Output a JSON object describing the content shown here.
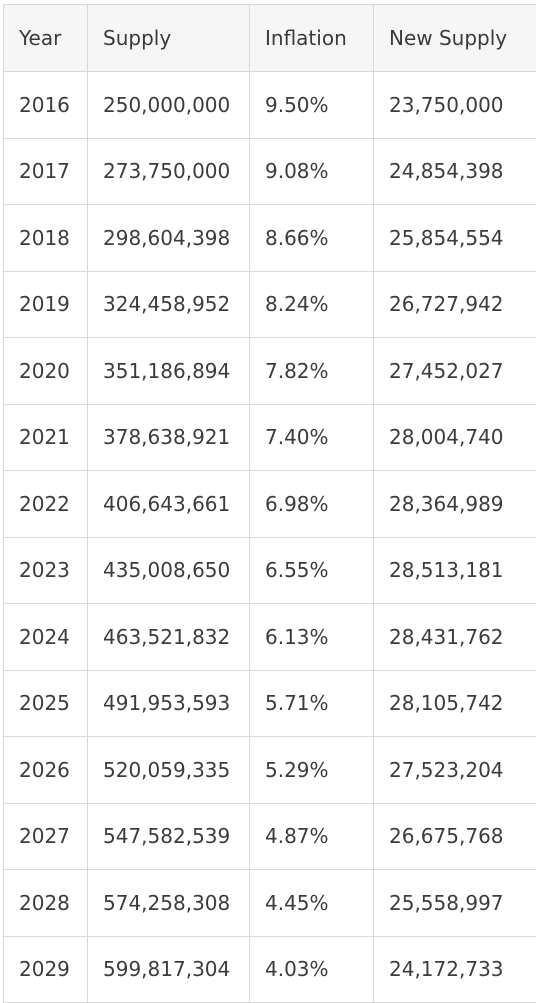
{
  "table": {
    "headers": [
      "Year",
      "Supply",
      "Inflation",
      "New Supply"
    ],
    "rows": [
      [
        "2016",
        "250,000,000",
        "9.50%",
        "23,750,000"
      ],
      [
        "2017",
        "273,750,000",
        "9.08%",
        "24,854,398"
      ],
      [
        "2018",
        "298,604,398",
        "8.66%",
        "25,854,554"
      ],
      [
        "2019",
        "324,458,952",
        "8.24%",
        "26,727,942"
      ],
      [
        "2020",
        "351,186,894",
        "7.82%",
        "27,452,027"
      ],
      [
        "2021",
        "378,638,921",
        "7.40%",
        "28,004,740"
      ],
      [
        "2022",
        "406,643,661",
        "6.98%",
        "28,364,989"
      ],
      [
        "2023",
        "435,008,650",
        "6.55%",
        "28,513,181"
      ],
      [
        "2024",
        "463,521,832",
        "6.13%",
        "28,431,762"
      ],
      [
        "2025",
        "491,953,593",
        "5.71%",
        "28,105,742"
      ],
      [
        "2026",
        "520,059,335",
        "5.29%",
        "27,523,204"
      ],
      [
        "2027",
        "547,582,539",
        "4.87%",
        "26,675,768"
      ],
      [
        "2028",
        "574,258,308",
        "4.45%",
        "25,558,997"
      ],
      [
        "2029",
        "599,817,304",
        "4.03%",
        "24,172,733"
      ]
    ]
  }
}
